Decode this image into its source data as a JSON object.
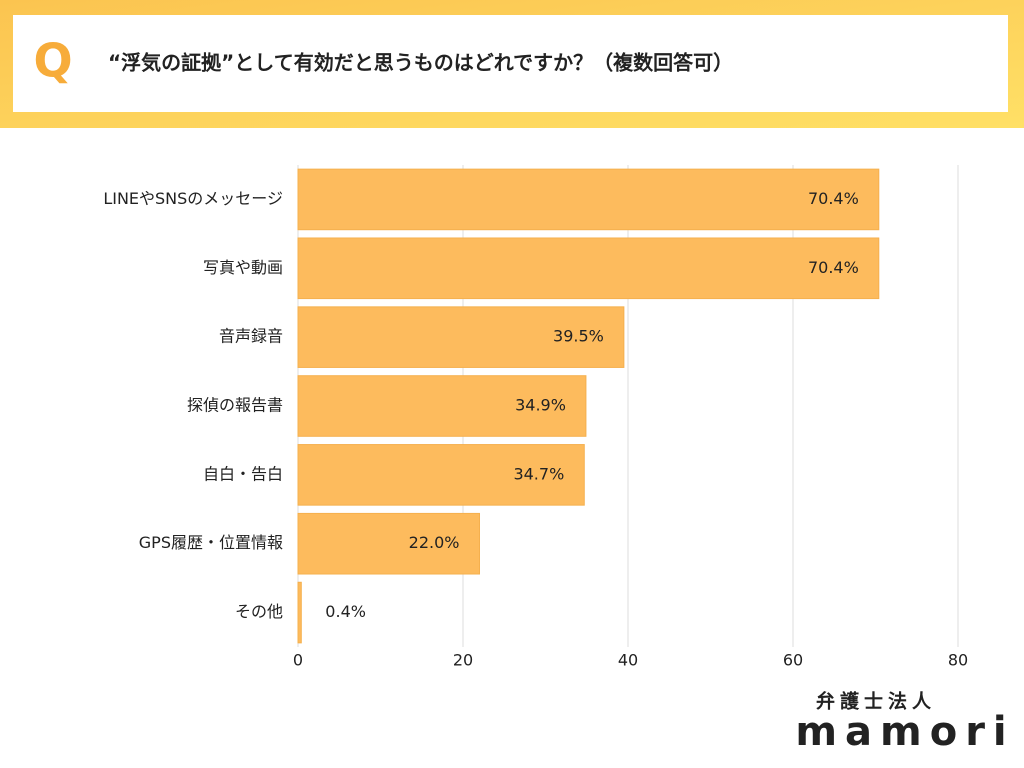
{
  "badge": "Q",
  "chart_data": {
    "type": "bar",
    "orientation": "horizontal",
    "title": "“浮気の証拠”として有効だと思うものはどれですか？（複数回答可）",
    "categories": [
      "LINEやSNSのメッセージ",
      "写真や動画",
      "音声録音",
      "探偵の報告書",
      "自白・告白",
      "GPS履歴・位置情報",
      "その他"
    ],
    "values": [
      70.4,
      70.4,
      39.5,
      34.9,
      34.7,
      22.0,
      0.4
    ],
    "value_labels": [
      "70.4%",
      "70.4%",
      "39.5%",
      "34.9%",
      "34.7%",
      "22.0%",
      "0.4%"
    ],
    "color": "#fdbb5d",
    "xlim": [
      0,
      80
    ],
    "xticks": [
      0,
      20,
      40,
      60,
      80
    ],
    "grid": true
  },
  "logo": {
    "line1": "弁護士法人",
    "line2": "mamori"
  }
}
